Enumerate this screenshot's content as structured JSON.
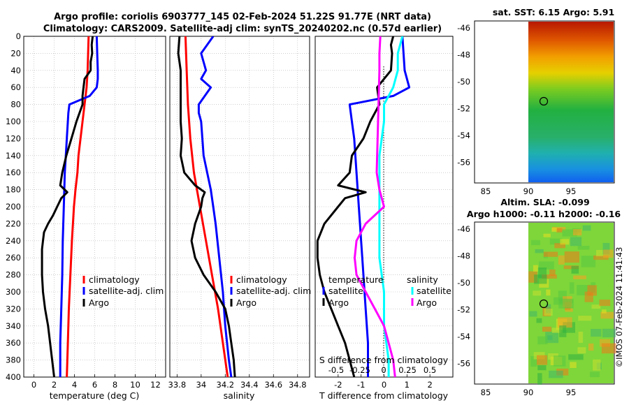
{
  "title_line1": "Argo profile: coriolis 6903777_145 02-Feb-2024 51.22S 91.77E (NRT data)",
  "title_line2": "Climatology: CARS2009. Satellite-adj clim: synTS_20240202.nc (0.57d earlier)",
  "colors": {
    "climatology": "#ff0000",
    "satellite": "#0000ff",
    "argo": "#000000",
    "temp_diff": "#ff00ff",
    "sal_diff": "#00ffff",
    "sal_satellite_diff": "#ff00ff"
  },
  "chart_data": [
    {
      "type": "line",
      "id": "temperature",
      "xlabel": "temperature (deg C)",
      "ylabel": "",
      "xlim": [
        -1,
        13
      ],
      "ylim": [
        400,
        0
      ],
      "xticks": [
        0,
        2,
        4,
        6,
        8,
        10,
        12
      ],
      "xtick_labels": [
        "0",
        "2",
        "4",
        "6",
        "8",
        "10",
        "12"
      ],
      "yticks": [
        0,
        20,
        40,
        60,
        80,
        100,
        120,
        140,
        160,
        180,
        200,
        220,
        240,
        260,
        280,
        300,
        320,
        340,
        360,
        380,
        400
      ],
      "ytick_labels": [
        "0",
        "20",
        "40",
        "60",
        "80",
        "100",
        "120",
        "140",
        "160",
        "180",
        "200",
        "220",
        "240",
        "260",
        "280",
        "300",
        "320",
        "340",
        "360",
        "380",
        "400"
      ],
      "legend": [
        "climatology",
        "satellite-adj. clim",
        "Argo"
      ],
      "series": [
        {
          "name": "climatology",
          "color": "#ff0000",
          "depth": [
            0,
            20,
            40,
            60,
            80,
            100,
            120,
            140,
            160,
            180,
            200,
            240,
            280,
            320,
            360,
            400
          ],
          "values": [
            5.4,
            5.35,
            5.3,
            5.2,
            5.0,
            4.8,
            4.6,
            4.4,
            4.3,
            4.1,
            3.95,
            3.75,
            3.6,
            3.45,
            3.35,
            3.25
          ]
        },
        {
          "name": "satellite-adj. clim",
          "color": "#0000ff",
          "depth": [
            0,
            20,
            40,
            50,
            60,
            70,
            80,
            90,
            100,
            120,
            140,
            160,
            180,
            200,
            240,
            280,
            320,
            360,
            400
          ],
          "values": [
            6.2,
            6.25,
            6.3,
            6.3,
            6.2,
            5.5,
            3.5,
            3.4,
            3.35,
            3.25,
            3.15,
            3.05,
            3.0,
            2.95,
            2.85,
            2.8,
            2.7,
            2.6,
            2.6
          ]
        },
        {
          "name": "Argo",
          "color": "#000000",
          "depth": [
            0,
            10,
            20,
            30,
            40,
            50,
            60,
            70,
            80,
            100,
            120,
            140,
            160,
            175,
            183,
            190,
            200,
            210,
            220,
            230,
            240,
            250,
            260,
            280,
            300,
            320,
            340,
            360,
            380,
            400
          ],
          "values": [
            5.8,
            5.7,
            5.75,
            5.6,
            5.6,
            5.0,
            4.9,
            4.8,
            4.8,
            4.2,
            3.7,
            3.2,
            2.8,
            2.6,
            3.3,
            2.7,
            2.3,
            1.9,
            1.4,
            1.0,
            0.9,
            0.8,
            0.8,
            0.8,
            0.9,
            1.1,
            1.4,
            1.6,
            1.8,
            2.0
          ]
        }
      ]
    },
    {
      "type": "line",
      "id": "salinity",
      "xlabel": "salinity",
      "ylabel": "",
      "xlim": [
        33.74,
        34.9
      ],
      "ylim": [
        400,
        0
      ],
      "xticks": [
        33.8,
        34.0,
        34.2,
        34.4,
        34.6,
        34.8
      ],
      "xtick_labels": [
        "33.8",
        "34",
        "34.2",
        "34.4",
        "34.6",
        "34.8"
      ],
      "legend": [
        "climatology",
        "satellite-adj. clim",
        "Argo"
      ],
      "series": [
        {
          "name": "climatology",
          "color": "#ff0000",
          "depth": [
            0,
            40,
            80,
            120,
            160,
            200,
            240,
            280,
            320,
            360,
            400
          ],
          "values": [
            33.87,
            33.88,
            33.89,
            33.91,
            33.94,
            33.99,
            34.04,
            34.09,
            34.14,
            34.18,
            34.22
          ]
        },
        {
          "name": "satellite-adj. clim",
          "color": "#0000ff",
          "depth": [
            0,
            10,
            20,
            40,
            50,
            60,
            80,
            90,
            100,
            140,
            180,
            200,
            220,
            260,
            300,
            340,
            380,
            400
          ],
          "values": [
            34.1,
            34.05,
            34.0,
            34.04,
            34.0,
            34.08,
            33.98,
            33.98,
            34.0,
            34.02,
            34.08,
            34.1,
            34.12,
            34.15,
            34.18,
            34.2,
            34.23,
            34.25
          ]
        },
        {
          "name": "Argo",
          "color": "#000000",
          "depth": [
            0,
            20,
            40,
            60,
            80,
            100,
            120,
            140,
            160,
            175,
            183,
            190,
            200,
            220,
            240,
            260,
            280,
            300,
            320,
            340,
            360,
            380,
            400
          ],
          "values": [
            33.82,
            33.81,
            33.83,
            33.83,
            33.83,
            33.83,
            33.84,
            33.83,
            33.86,
            33.95,
            34.03,
            34.01,
            34.0,
            33.95,
            33.92,
            33.95,
            34.02,
            34.12,
            34.2,
            34.23,
            34.25,
            34.27,
            34.28
          ]
        }
      ]
    },
    {
      "type": "line",
      "id": "difference",
      "xlabel": "T difference from climatology",
      "xlabel_top": "S difference from climatology",
      "xlim": [
        -3,
        3
      ],
      "ylim": [
        400,
        0
      ],
      "xticks": [
        -2,
        -1,
        0,
        1,
        2
      ],
      "xtick_labels": [
        "-2",
        "-1",
        "0",
        "1",
        "2"
      ],
      "sticks": [
        "-0.5",
        "-0.25",
        "0",
        "0.25",
        "0.5"
      ],
      "legend_temperature": "temperature",
      "legend_salinity": "salinity",
      "legend_entries": [
        "satellite",
        "Argo",
        "satellite",
        "Argo"
      ],
      "series": [
        {
          "name": "T satellite",
          "color": "#0000ff",
          "depth": [
            0,
            40,
            60,
            70,
            80,
            100,
            120,
            160,
            200,
            240,
            280,
            320,
            360,
            400
          ],
          "values": [
            0.8,
            0.9,
            1.1,
            0.4,
            -1.5,
            -1.4,
            -1.3,
            -1.2,
            -1.1,
            -1.0,
            -0.9,
            -0.8,
            -0.7,
            -0.7
          ]
        },
        {
          "name": "T Argo",
          "color": "#000000",
          "depth": [
            0,
            10,
            20,
            40,
            60,
            80,
            100,
            120,
            140,
            160,
            175,
            183,
            190,
            200,
            220,
            240,
            260,
            280,
            300,
            320,
            340,
            360,
            380,
            400
          ],
          "values": [
            0.4,
            0.3,
            0.35,
            0.3,
            -0.3,
            -0.2,
            -0.6,
            -0.9,
            -1.4,
            -1.5,
            -2.0,
            -0.8,
            -1.7,
            -2.0,
            -2.6,
            -2.9,
            -2.9,
            -2.8,
            -2.6,
            -2.3,
            -2.0,
            -1.7,
            -1.5,
            -1.3
          ]
        },
        {
          "name": "S satellite",
          "color": "#00ffff",
          "depth": [
            0,
            20,
            40,
            60,
            80,
            100,
            140,
            180,
            220,
            260,
            300,
            340,
            380,
            400
          ],
          "values": [
            0.2,
            0.15,
            0.15,
            0.1,
            0.0,
            0.0,
            -0.05,
            -0.05,
            -0.05,
            -0.05,
            0.0,
            0.0,
            0.05,
            0.05
          ]
        },
        {
          "name": "S Argo",
          "color": "#ff00ff",
          "depth": [
            0,
            20,
            40,
            80,
            120,
            160,
            180,
            200,
            220,
            240,
            260,
            280,
            300,
            320,
            340,
            360,
            380,
            400
          ],
          "values": [
            -0.04,
            -0.05,
            -0.05,
            -0.06,
            -0.07,
            -0.08,
            -0.05,
            0.0,
            -0.2,
            -0.3,
            -0.32,
            -0.3,
            -0.2,
            -0.1,
            0.0,
            0.05,
            0.1,
            0.12
          ]
        }
      ]
    }
  ],
  "maps": {
    "sst": {
      "title": "sat. SST: 6.15 Argo: 5.91",
      "yticks": [
        "-46",
        "-48",
        "-50",
        "-52",
        "-54",
        "-56"
      ],
      "xticks": [
        "85",
        "90",
        "95"
      ],
      "argo_marker": {
        "lon": 91.77,
        "lat": -51.22
      }
    },
    "sla": {
      "title_line1": "Altim. SLA: -0.099",
      "title_line2": "Argo h1000: -0.11 h2000: -0.16",
      "yticks": [
        "-46",
        "-48",
        "-50",
        "-52",
        "-54",
        "-56"
      ],
      "xticks": [
        "85",
        "90",
        "95"
      ],
      "argo_marker": {
        "lon": 91.77,
        "lat": -51.22
      }
    }
  },
  "watermark": "©IMOS 07-Feb-2024 11:41:43"
}
